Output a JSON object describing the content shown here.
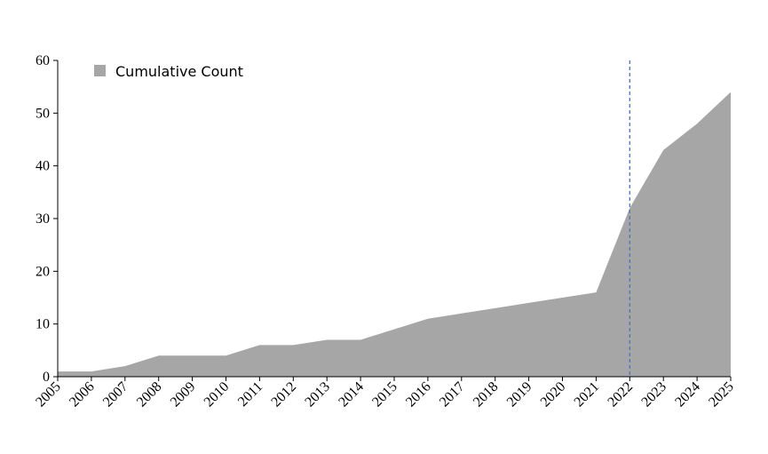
{
  "chart_data": {
    "type": "area",
    "x": [
      2005,
      2006,
      2007,
      2008,
      2009,
      2010,
      2011,
      2012,
      2013,
      2014,
      2015,
      2016,
      2017,
      2018,
      2019,
      2020,
      2021,
      2022,
      2023,
      2024,
      2025
    ],
    "series": [
      {
        "name": "Cumulative Count",
        "color": "#a6a6a6",
        "values": [
          1,
          1,
          2,
          4,
          4,
          4,
          6,
          6,
          7,
          7,
          9,
          11,
          12,
          13,
          14,
          15,
          16,
          32,
          43,
          48,
          54
        ]
      }
    ],
    "xlim": [
      2005,
      2025
    ],
    "xticks": [
      2005,
      2006,
      2007,
      2008,
      2009,
      2010,
      2011,
      2012,
      2013,
      2014,
      2015,
      2016,
      2017,
      2018,
      2019,
      2020,
      2021,
      2022,
      2023,
      2024,
      2025
    ],
    "ylim": [
      0,
      60
    ],
    "yticks": [
      0,
      10,
      20,
      30,
      40,
      50,
      60
    ],
    "vline": {
      "x": 2022,
      "color": "#4a72c4"
    },
    "legend": "upper left",
    "grid": false
  }
}
